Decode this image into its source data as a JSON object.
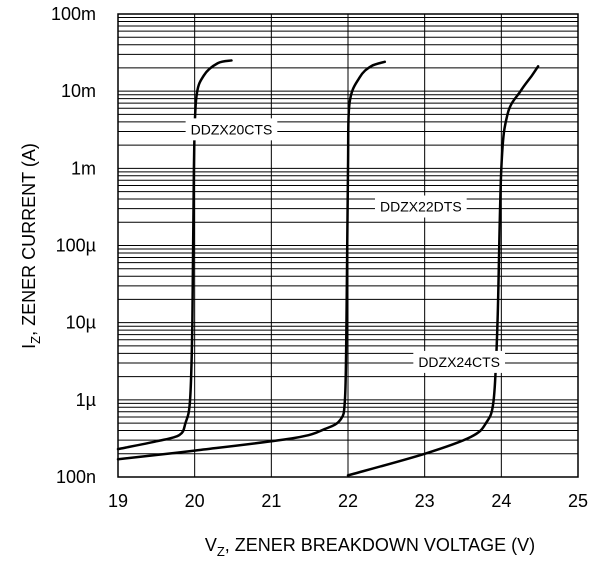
{
  "chart_data": {
    "type": "line",
    "xlabel": "V",
    "xlabel_sub": "Z",
    "xlabel_rest": ", ZENER BREAKDOWN VOLTAGE (V)",
    "ylabel": "I",
    "ylabel_sub": "Z",
    "ylabel_rest": ", ZENER CURRENT (A)",
    "xlim": [
      19,
      25
    ],
    "ylim": [
      1e-07,
      0.1
    ],
    "y_scale": "log",
    "grid": true,
    "x_ticks": [
      {
        "value": 19,
        "label": "19"
      },
      {
        "value": 20,
        "label": "20"
      },
      {
        "value": 21,
        "label": "21"
      },
      {
        "value": 22,
        "label": "22"
      },
      {
        "value": 23,
        "label": "23"
      },
      {
        "value": 24,
        "label": "24"
      },
      {
        "value": 25,
        "label": "25"
      }
    ],
    "y_ticks": [
      {
        "value": 1e-07,
        "label": "100n"
      },
      {
        "value": 1e-06,
        "label": "1µ"
      },
      {
        "value": 1e-05,
        "label": "10µ"
      },
      {
        "value": 0.0001,
        "label": "100µ"
      },
      {
        "value": 0.001,
        "label": "1m"
      },
      {
        "value": 0.01,
        "label": "10m"
      },
      {
        "value": 0.1,
        "label": "100m"
      }
    ],
    "series": [
      {
        "name": "DDZX20CTS",
        "label_at": {
          "x": 20.48,
          "y": 0.0032
        },
        "points": [
          {
            "x": 19.0,
            "y": 2.3e-07
          },
          {
            "x": 19.5,
            "y": 2.9e-07
          },
          {
            "x": 19.8,
            "y": 3.5e-07
          },
          {
            "x": 19.88,
            "y": 5e-07
          },
          {
            "x": 19.94,
            "y": 1e-06
          },
          {
            "x": 19.97,
            "y": 1e-05
          },
          {
            "x": 19.99,
            "y": 0.001
          },
          {
            "x": 20.02,
            "y": 0.008
          },
          {
            "x": 20.12,
            "y": 0.016
          },
          {
            "x": 20.3,
            "y": 0.023
          },
          {
            "x": 20.48,
            "y": 0.025
          }
        ]
      },
      {
        "name": "DDZX22DTS",
        "label_at": {
          "x": 22.95,
          "y": 0.00032
        },
        "points": [
          {
            "x": 19.0,
            "y": 1.7e-07
          },
          {
            "x": 20.0,
            "y": 2.2e-07
          },
          {
            "x": 21.3,
            "y": 3.2e-07
          },
          {
            "x": 21.7,
            "y": 4.2e-07
          },
          {
            "x": 21.9,
            "y": 5.5e-07
          },
          {
            "x": 21.96,
            "y": 1e-06
          },
          {
            "x": 21.98,
            "y": 1e-05
          },
          {
            "x": 22.0,
            "y": 0.001
          },
          {
            "x": 22.02,
            "y": 0.007
          },
          {
            "x": 22.15,
            "y": 0.015
          },
          {
            "x": 22.3,
            "y": 0.021
          },
          {
            "x": 22.48,
            "y": 0.024
          }
        ]
      },
      {
        "name": "DDZX24CTS",
        "label_at": {
          "x": 23.45,
          "y": 3.1e-06
        },
        "points": [
          {
            "x": 22.0,
            "y": 1.05e-07
          },
          {
            "x": 23.0,
            "y": 2e-07
          },
          {
            "x": 23.6,
            "y": 3.3e-07
          },
          {
            "x": 23.8,
            "y": 5e-07
          },
          {
            "x": 23.9,
            "y": 1e-06
          },
          {
            "x": 23.95,
            "y": 1e-05
          },
          {
            "x": 24.0,
            "y": 0.001
          },
          {
            "x": 24.08,
            "y": 0.005
          },
          {
            "x": 24.25,
            "y": 0.01
          },
          {
            "x": 24.4,
            "y": 0.016
          },
          {
            "x": 24.48,
            "y": 0.021
          }
        ]
      }
    ]
  }
}
